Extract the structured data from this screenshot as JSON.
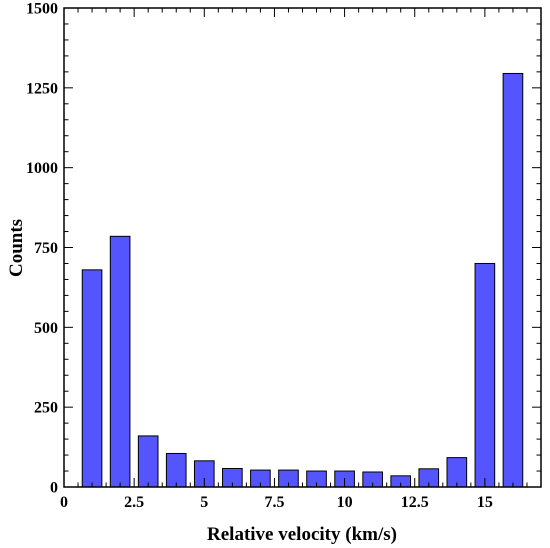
{
  "chart_data": {
    "type": "bar",
    "title": "",
    "xlabel": "Relative velocity (km/s)",
    "ylabel": "Counts",
    "xlim": [
      0,
      17
    ],
    "ylim": [
      0,
      1500
    ],
    "bar_width": 0.7,
    "bar_color": "#5555ff",
    "x_major_ticks": [
      0,
      2.5,
      5,
      7.5,
      10,
      12.5,
      15
    ],
    "x_minor_step": 0.5,
    "y_major_ticks": [
      0,
      250,
      500,
      750,
      1000,
      1250,
      1500
    ],
    "y_minor_step": 50,
    "x_tick_labels": [
      "0",
      "2.5",
      "5",
      "7.5",
      "10",
      "12.5",
      "15"
    ],
    "y_tick_labels": [
      "0",
      "250",
      "500",
      "750",
      "1000",
      "1250",
      "1500"
    ],
    "x": [
      1,
      2,
      3,
      4,
      5,
      6,
      7,
      8,
      9,
      10,
      11,
      12,
      13,
      14,
      15,
      16
    ],
    "values": [
      680,
      785,
      160,
      105,
      82,
      58,
      53,
      53,
      50,
      50,
      47,
      35,
      57,
      92,
      700,
      1295
    ],
    "grid": false
  }
}
